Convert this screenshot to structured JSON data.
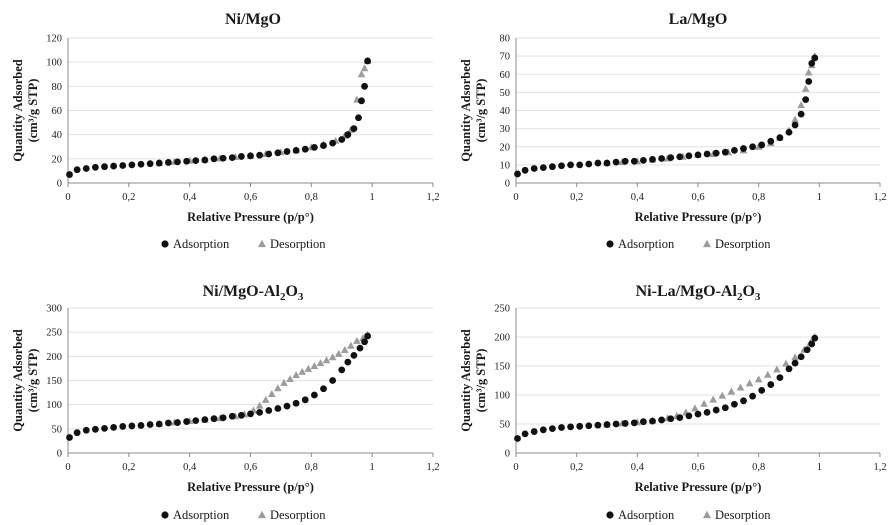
{
  "colors": {
    "adsorption": "#111111",
    "desorption": "#9c9c9c",
    "grid": "#e2e2e2",
    "axis": "#8c8c8c"
  },
  "chart_data": [
    {
      "type": "scatter",
      "title": {
        "main": "Ni/MgO",
        "sub": "",
        "suffix": ""
      },
      "xlabel": "Relative Pressure (p/p°)",
      "ylabel_line1": "Quantity Adsorbed",
      "ylabel_line2": "(cm³/g STP)",
      "xlim": [
        0,
        1.2
      ],
      "ylim": [
        0,
        120
      ],
      "xticks": [
        "0",
        "0,2",
        "0,4",
        "0,6",
        "0,8",
        "1",
        "1,2"
      ],
      "yticks": [
        "0",
        "20",
        "40",
        "60",
        "80",
        "100",
        "120"
      ],
      "grid": "horizontal",
      "legend": "bottom-center",
      "series": [
        {
          "name": "Adsorption",
          "marker": "circle",
          "x": [
            0.005,
            0.03,
            0.06,
            0.09,
            0.12,
            0.15,
            0.18,
            0.21,
            0.24,
            0.27,
            0.3,
            0.33,
            0.36,
            0.39,
            0.42,
            0.45,
            0.48,
            0.51,
            0.54,
            0.57,
            0.6,
            0.63,
            0.66,
            0.69,
            0.72,
            0.75,
            0.78,
            0.81,
            0.84,
            0.87,
            0.9,
            0.92,
            0.94,
            0.955,
            0.965,
            0.975,
            0.985
          ],
          "y": [
            7,
            11,
            12,
            13,
            13.5,
            14,
            14.5,
            15,
            15.5,
            16,
            16.5,
            17,
            17.5,
            18,
            18.5,
            19,
            20,
            20.5,
            21,
            22,
            22.5,
            23,
            24,
            25,
            26,
            27,
            28,
            29.5,
            31,
            33,
            36,
            40,
            45,
            54,
            68,
            80,
            101
          ]
        },
        {
          "name": "Desorption",
          "marker": "triangle",
          "x": [
            0.3,
            0.35,
            0.4,
            0.45,
            0.5,
            0.55,
            0.6,
            0.65,
            0.7,
            0.75,
            0.8,
            0.84,
            0.88,
            0.91,
            0.93,
            0.95,
            0.965,
            0.975,
            0.985
          ],
          "y": [
            16.5,
            17.5,
            18.5,
            19.5,
            20.5,
            21.5,
            22.5,
            24,
            25.5,
            27,
            29.5,
            32,
            35,
            39,
            44,
            69,
            90,
            95,
            101
          ]
        }
      ]
    },
    {
      "type": "scatter",
      "title": {
        "main": "La/MgO",
        "sub": "",
        "suffix": ""
      },
      "xlabel": "Relative Pressure (p/p°)",
      "ylabel_line1": "Quantity Adsorbed",
      "ylabel_line2": "(cm³/g STP)",
      "xlim": [
        0,
        1.2
      ],
      "ylim": [
        0,
        80
      ],
      "xticks": [
        "0",
        "0,2",
        "0,4",
        "0,6",
        "0,8",
        "1",
        "1,2"
      ],
      "yticks": [
        "0",
        "10",
        "20",
        "30",
        "40",
        "50",
        "60",
        "70",
        "80"
      ],
      "grid": "horizontal",
      "legend": "bottom-center",
      "series": [
        {
          "name": "Adsorption",
          "marker": "circle",
          "x": [
            0.005,
            0.03,
            0.06,
            0.09,
            0.12,
            0.15,
            0.18,
            0.21,
            0.24,
            0.27,
            0.3,
            0.33,
            0.36,
            0.39,
            0.42,
            0.45,
            0.48,
            0.51,
            0.54,
            0.57,
            0.6,
            0.63,
            0.66,
            0.69,
            0.72,
            0.75,
            0.78,
            0.81,
            0.84,
            0.87,
            0.9,
            0.92,
            0.94,
            0.955,
            0.965,
            0.975,
            0.985
          ],
          "y": [
            5,
            7,
            8,
            8.5,
            9,
            9.5,
            10,
            10,
            10.5,
            11,
            11,
            11.5,
            12,
            12,
            12.5,
            13,
            13.5,
            14,
            14.5,
            15,
            15.5,
            16,
            16.5,
            17,
            18,
            19,
            20,
            21,
            23,
            25,
            28,
            32,
            38,
            46,
            56,
            66,
            69
          ]
        },
        {
          "name": "Desorption",
          "marker": "triangle",
          "x": [
            0.3,
            0.35,
            0.4,
            0.45,
            0.5,
            0.55,
            0.6,
            0.65,
            0.7,
            0.75,
            0.8,
            0.84,
            0.87,
            0.9,
            0.92,
            0.94,
            0.955,
            0.965,
            0.975,
            0.985
          ],
          "y": [
            11,
            11.5,
            12,
            13,
            13.5,
            14.5,
            15.5,
            16,
            17,
            18,
            20,
            22,
            25,
            29,
            35,
            43,
            52,
            61,
            65,
            70
          ]
        }
      ]
    },
    {
      "type": "scatter",
      "title": {
        "main": "Ni/MgO-Al",
        "sub": "2",
        "suffix": "O",
        "sub2": "3"
      },
      "xlabel": "Relative Pressure (p/p°)",
      "ylabel_line1": "Quantity Adsorbed",
      "ylabel_line2": "(cm³/g STP)",
      "xlim": [
        0,
        1.2
      ],
      "ylim": [
        0,
        300
      ],
      "xticks": [
        "0",
        "0,2",
        "0,4",
        "0,6",
        "0,8",
        "1",
        "1,2"
      ],
      "yticks": [
        "0",
        "50",
        "100",
        "150",
        "200",
        "250",
        "300"
      ],
      "grid": "horizontal",
      "legend": "bottom-center",
      "series": [
        {
          "name": "Adsorption",
          "marker": "circle",
          "x": [
            0.005,
            0.03,
            0.06,
            0.09,
            0.12,
            0.15,
            0.18,
            0.21,
            0.24,
            0.27,
            0.3,
            0.33,
            0.36,
            0.39,
            0.42,
            0.45,
            0.48,
            0.51,
            0.54,
            0.57,
            0.6,
            0.63,
            0.66,
            0.69,
            0.72,
            0.75,
            0.78,
            0.81,
            0.84,
            0.87,
            0.9,
            0.92,
            0.94,
            0.96,
            0.975,
            0.985
          ],
          "y": [
            32,
            42,
            47,
            49,
            51,
            53,
            55,
            56,
            57,
            59,
            60,
            62,
            63,
            65,
            67,
            69,
            71,
            73,
            76,
            78,
            81,
            84,
            88,
            92,
            97,
            103,
            110,
            120,
            133,
            150,
            172,
            188,
            202,
            217,
            230,
            242
          ]
        },
        {
          "name": "Desorption",
          "marker": "triangle",
          "x": [
            0.3,
            0.35,
            0.4,
            0.45,
            0.5,
            0.55,
            0.58,
            0.61,
            0.63,
            0.65,
            0.67,
            0.69,
            0.71,
            0.73,
            0.75,
            0.77,
            0.79,
            0.81,
            0.83,
            0.85,
            0.87,
            0.89,
            0.91,
            0.93,
            0.95,
            0.97,
            0.985
          ],
          "y": [
            60,
            63,
            66,
            69,
            72,
            76,
            80,
            88,
            98,
            110,
            122,
            134,
            145,
            153,
            161,
            168,
            174,
            180,
            186,
            192,
            198,
            205,
            213,
            222,
            232,
            238,
            245
          ]
        }
      ]
    },
    {
      "type": "scatter",
      "title": {
        "main": "Ni-La/MgO-Al",
        "sub": "2",
        "suffix": "O",
        "sub2": "3"
      },
      "xlabel": "Relative Pressure (p/p°)",
      "ylabel_line1": "Quantity Adsorbed",
      "ylabel_line2": "(cm³/g STP)",
      "xlim": [
        0,
        1.2
      ],
      "ylim": [
        0,
        250
      ],
      "xticks": [
        "0",
        "0,2",
        "0,4",
        "0,6",
        "0,8",
        "1",
        "1,2"
      ],
      "yticks": [
        "0",
        "50",
        "100",
        "150",
        "200",
        "250"
      ],
      "grid": "horizontal",
      "legend": "bottom-center",
      "series": [
        {
          "name": "Adsorption",
          "marker": "circle",
          "x": [
            0.005,
            0.03,
            0.06,
            0.09,
            0.12,
            0.15,
            0.18,
            0.21,
            0.24,
            0.27,
            0.3,
            0.33,
            0.36,
            0.39,
            0.42,
            0.45,
            0.48,
            0.51,
            0.54,
            0.57,
            0.6,
            0.63,
            0.66,
            0.69,
            0.72,
            0.75,
            0.78,
            0.81,
            0.84,
            0.87,
            0.9,
            0.92,
            0.94,
            0.96,
            0.975,
            0.985
          ],
          "y": [
            25,
            33,
            37,
            40,
            42,
            44,
            45,
            46,
            47,
            48,
            49,
            50,
            51,
            52,
            54,
            55,
            57,
            59,
            61,
            64,
            67,
            70,
            74,
            78,
            84,
            90,
            98,
            108,
            118,
            130,
            145,
            155,
            166,
            178,
            188,
            198
          ]
        },
        {
          "name": "Desorption",
          "marker": "triangle",
          "x": [
            0.3,
            0.35,
            0.4,
            0.45,
            0.5,
            0.53,
            0.56,
            0.59,
            0.62,
            0.65,
            0.68,
            0.71,
            0.74,
            0.77,
            0.8,
            0.83,
            0.86,
            0.89,
            0.92,
            0.95,
            0.97,
            0.985
          ],
          "y": [
            49,
            51,
            53,
            56,
            60,
            64,
            70,
            77,
            85,
            92,
            99,
            106,
            113,
            120,
            127,
            135,
            144,
            154,
            165,
            178,
            190,
            200
          ]
        }
      ]
    }
  ]
}
